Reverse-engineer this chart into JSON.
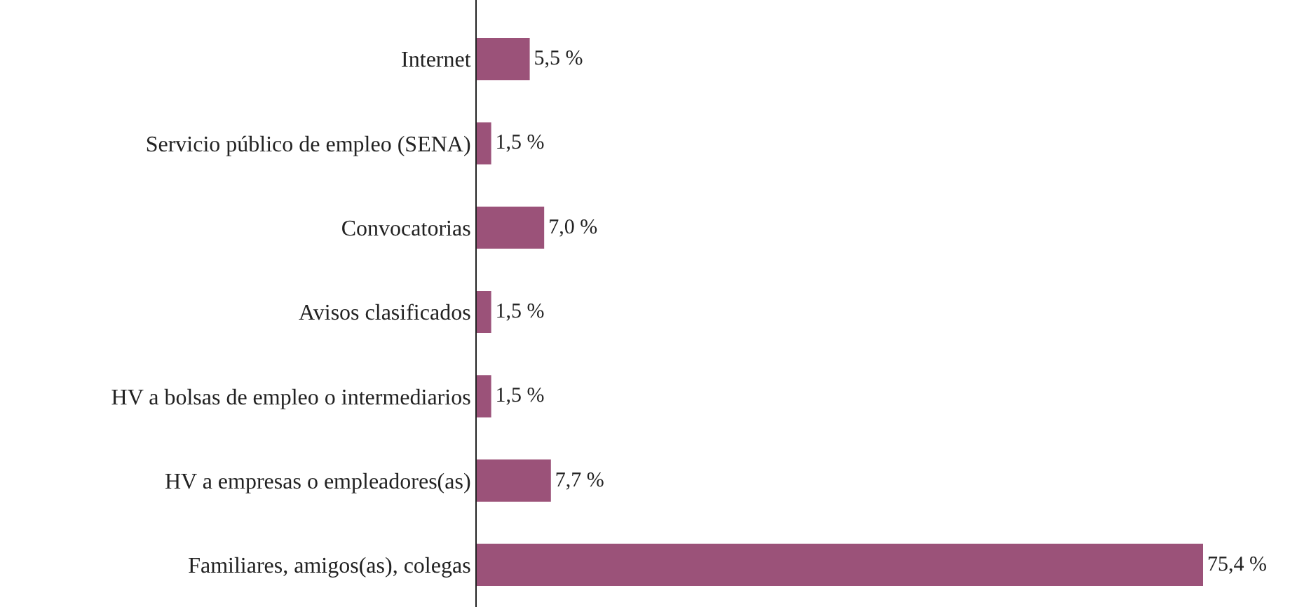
{
  "chart_data": {
    "type": "bar",
    "orientation": "horizontal",
    "categories": [
      "Internet",
      "Servicio público de empleo (SENA)",
      "Convocatorias",
      "Avisos clasificados",
      "HV a bolsas de empleo o intermediarios",
      "HV a empresas o empleadores(as)",
      "Familiares, amigos(as), colegas"
    ],
    "values": [
      5.5,
      1.5,
      7.0,
      1.5,
      1.5,
      7.7,
      75.4
    ],
    "value_labels": [
      "5,5 %",
      "1,5 %",
      "7,0 %",
      "1,5 %",
      "1,5 %",
      "7,7 %",
      "75,4 %"
    ],
    "color": "#9b5279"
  }
}
